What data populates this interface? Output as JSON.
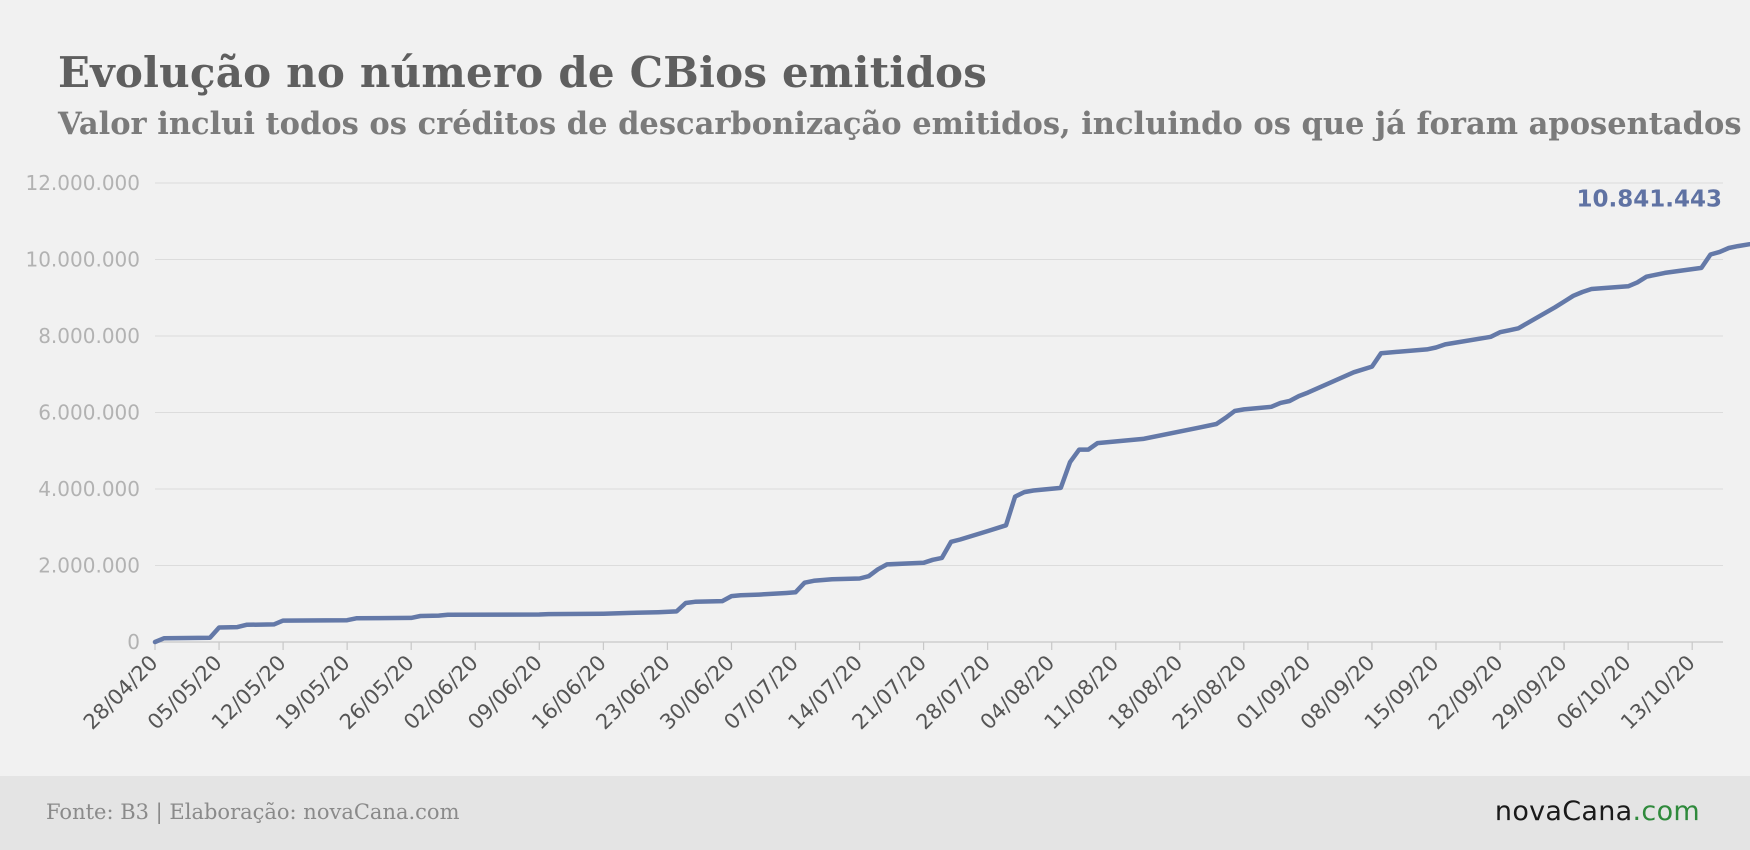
{
  "title": "Evolução no número de CBios emitidos",
  "subtitle": "Valor inclui todos os créditos de descarbonização emitidos, incluindo os que já foram aposentados",
  "footer": {
    "source": "Fonte: B3 | Elaboração: novaCana.com",
    "logo_brand": "novaCana",
    "logo_tld": ".com"
  },
  "colors": {
    "line": "#6479a8",
    "label": "#5f72a3",
    "grid": "#dcdcdc",
    "ytick": "#b2b2b2",
    "xtick": "#555555"
  },
  "chart_data": {
    "type": "line",
    "title": "Evolução no número de CBios emitidos",
    "subtitle": "Valor inclui todos os créditos de descarbonização emitidos, incluindo os que já foram aposentados",
    "xlabel": "",
    "ylabel": "",
    "x_range": [
      "2020-04-28",
      "2020-10-17"
    ],
    "ylim": [
      0,
      12000000
    ],
    "yticks": [
      0,
      2000000,
      4000000,
      6000000,
      8000000,
      10000000,
      12000000
    ],
    "ytick_labels": [
      "0",
      "2.000.000",
      "4.000.000",
      "6.000.000",
      "8.000.000",
      "10.000.000",
      "12.000.000"
    ],
    "xtick_dates": [
      "2020-04-28",
      "2020-05-05",
      "2020-05-12",
      "2020-05-19",
      "2020-05-26",
      "2020-06-02",
      "2020-06-09",
      "2020-06-16",
      "2020-06-23",
      "2020-06-30",
      "2020-07-07",
      "2020-07-14",
      "2020-07-21",
      "2020-07-28",
      "2020-08-04",
      "2020-08-11",
      "2020-08-18",
      "2020-08-25",
      "2020-09-01",
      "2020-09-08",
      "2020-09-15",
      "2020-09-22",
      "2020-09-29",
      "2020-10-06",
      "2020-10-13"
    ],
    "xtick_labels": [
      "28/04/20",
      "05/05/20",
      "12/05/20",
      "19/05/20",
      "26/05/20",
      "02/06/20",
      "09/06/20",
      "16/06/20",
      "23/06/20",
      "30/06/20",
      "07/07/20",
      "14/07/20",
      "21/07/20",
      "28/07/20",
      "04/08/20",
      "11/08/20",
      "18/08/20",
      "25/08/20",
      "01/09/20",
      "08/09/20",
      "15/09/20",
      "22/09/20",
      "29/09/20",
      "06/10/20",
      "13/10/20"
    ],
    "grid": true,
    "legend": "none",
    "series": [
      {
        "points": [
          [
            "2020-04-28",
            0
          ],
          [
            "2020-04-29",
            100000
          ],
          [
            "2020-05-04",
            110000
          ],
          [
            "2020-05-05",
            380000
          ],
          [
            "2020-05-07",
            390000
          ],
          [
            "2020-05-08",
            450000
          ],
          [
            "2020-05-11",
            460000
          ],
          [
            "2020-05-12",
            560000
          ],
          [
            "2020-05-19",
            570000
          ],
          [
            "2020-05-20",
            620000
          ],
          [
            "2020-05-26",
            630000
          ],
          [
            "2020-05-27",
            680000
          ],
          [
            "2020-05-29",
            690000
          ],
          [
            "2020-05-30",
            710000
          ],
          [
            "2020-06-09",
            720000
          ],
          [
            "2020-06-10",
            730000
          ],
          [
            "2020-06-16",
            740000
          ],
          [
            "2020-06-19",
            760000
          ],
          [
            "2020-06-22",
            780000
          ],
          [
            "2020-06-24",
            800000
          ],
          [
            "2020-06-25",
            1020000
          ],
          [
            "2020-06-26",
            1050000
          ],
          [
            "2020-06-29",
            1070000
          ],
          [
            "2020-06-30",
            1200000
          ],
          [
            "2020-07-01",
            1220000
          ],
          [
            "2020-07-03",
            1240000
          ],
          [
            "2020-07-06",
            1280000
          ],
          [
            "2020-07-07",
            1300000
          ],
          [
            "2020-07-08",
            1550000
          ],
          [
            "2020-07-09",
            1600000
          ],
          [
            "2020-07-11",
            1640000
          ],
          [
            "2020-07-14",
            1660000
          ],
          [
            "2020-07-15",
            1720000
          ],
          [
            "2020-07-16",
            1900000
          ],
          [
            "2020-07-17",
            2030000
          ],
          [
            "2020-07-21",
            2070000
          ],
          [
            "2020-07-22",
            2150000
          ],
          [
            "2020-07-23",
            2200000
          ],
          [
            "2020-07-24",
            2620000
          ],
          [
            "2020-07-25",
            2680000
          ],
          [
            "2020-07-28",
            2900000
          ],
          [
            "2020-07-30",
            3050000
          ],
          [
            "2020-07-31",
            3800000
          ],
          [
            "2020-08-01",
            3920000
          ],
          [
            "2020-08-02",
            3960000
          ],
          [
            "2020-08-05",
            4030000
          ],
          [
            "2020-08-06",
            4700000
          ],
          [
            "2020-08-07",
            5030000
          ],
          [
            "2020-08-08",
            5030000
          ],
          [
            "2020-08-09",
            5200000
          ],
          [
            "2020-08-14",
            5310000
          ],
          [
            "2020-08-20",
            5600000
          ],
          [
            "2020-08-22",
            5700000
          ],
          [
            "2020-08-23",
            5860000
          ],
          [
            "2020-08-24",
            6040000
          ],
          [
            "2020-08-25",
            6080000
          ],
          [
            "2020-08-28",
            6150000
          ],
          [
            "2020-08-29",
            6250000
          ],
          [
            "2020-08-30",
            6300000
          ],
          [
            "2020-08-31",
            6430000
          ],
          [
            "2020-09-01",
            6520000
          ],
          [
            "2020-09-06",
            7050000
          ],
          [
            "2020-09-08",
            7200000
          ],
          [
            "2020-09-09",
            7550000
          ],
          [
            "2020-09-14",
            7650000
          ],
          [
            "2020-09-15",
            7700000
          ],
          [
            "2020-09-16",
            7780000
          ],
          [
            "2020-09-21",
            7980000
          ],
          [
            "2020-09-22",
            8100000
          ],
          [
            "2020-09-23",
            8150000
          ],
          [
            "2020-09-24",
            8200000
          ],
          [
            "2020-09-28",
            8750000
          ],
          [
            "2020-09-29",
            8900000
          ],
          [
            "2020-09-30",
            9050000
          ],
          [
            "2020-10-01",
            9150000
          ],
          [
            "2020-10-02",
            9230000
          ],
          [
            "2020-10-06",
            9300000
          ],
          [
            "2020-10-07",
            9400000
          ],
          [
            "2020-10-08",
            9550000
          ],
          [
            "2020-10-09",
            9600000
          ],
          [
            "2020-10-10",
            9650000
          ],
          [
            "2020-10-14",
            9780000
          ],
          [
            "2020-10-15",
            10130000
          ],
          [
            "2020-10-16",
            10200000
          ],
          [
            "2020-10-17",
            10300000
          ],
          [
            "2020-10-18",
            10350000
          ],
          [
            "2020-10-23",
            10550000
          ],
          [
            "2020-10-24",
            10720000
          ],
          [
            "2020-10-25",
            10841443
          ]
        ]
      }
    ],
    "annotations": [
      {
        "text": "10.841.443",
        "x": "2020-10-25",
        "y": 10841443
      }
    ]
  }
}
